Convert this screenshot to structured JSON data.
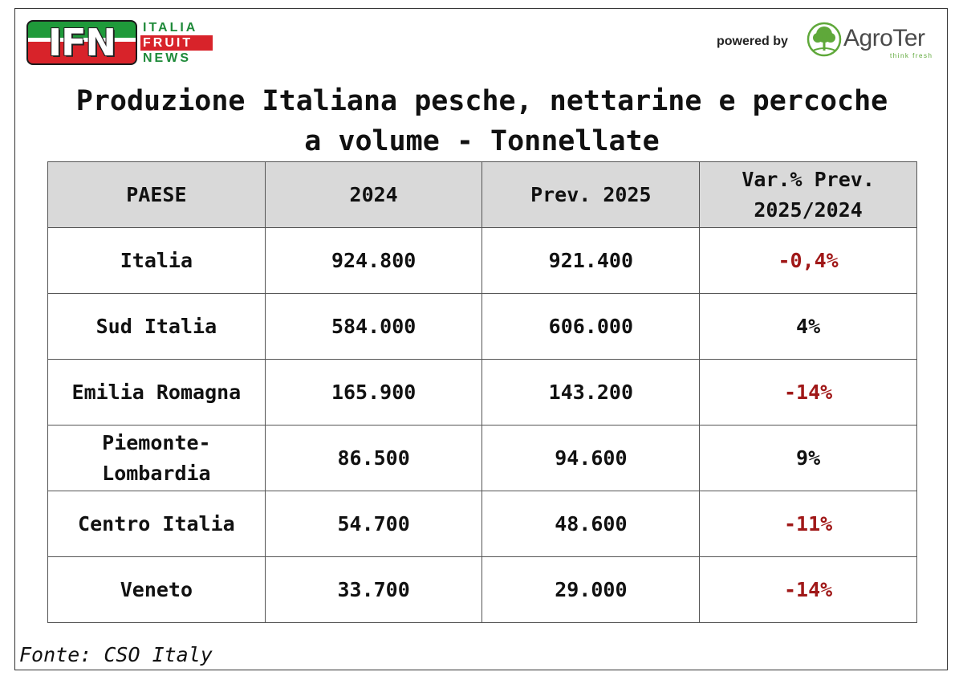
{
  "logo_left": {
    "letters": "IFN",
    "words": [
      "ITALIA",
      "FRUIT",
      "NEWS"
    ],
    "colors": {
      "green": "#1f9a3a",
      "red": "#d8232a"
    }
  },
  "powered_by": "powered by",
  "logo_right": {
    "name": "AgroTer",
    "tagline": "think fresh",
    "icon": "tree-icon",
    "color": "#5fa83a"
  },
  "title_line1": "Produzione Italiana pesche, nettarine e percoche",
  "title_line2": "a volume - Tonnellate",
  "table": {
    "headers": [
      "PAESE",
      "2024",
      "Prev. 2025",
      "Var.% Prev.\n2025/2024"
    ],
    "rows": [
      {
        "paese": "Italia",
        "y2024": "924.800",
        "prev2025": "921.400",
        "var": "-0,4%",
        "negative": true
      },
      {
        "paese": "Sud Italia",
        "y2024": "584.000",
        "prev2025": "606.000",
        "var": "4%",
        "negative": false
      },
      {
        "paese": "Emilia Romagna",
        "y2024": "165.900",
        "prev2025": "143.200",
        "var": "-14%",
        "negative": true
      },
      {
        "paese": "Piemonte-\nLombardia",
        "y2024": "86.500",
        "prev2025": "94.600",
        "var": "9%",
        "negative": false
      },
      {
        "paese": "Centro Italia",
        "y2024": "54.700",
        "prev2025": "48.600",
        "var": "-11%",
        "negative": true
      },
      {
        "paese": "Veneto",
        "y2024": "33.700",
        "prev2025": "29.000",
        "var": "-14%",
        "negative": true
      }
    ],
    "negative_color": "#a01818",
    "header_bg": "#d9d9d9"
  },
  "source": "Fonte: CSO Italy"
}
